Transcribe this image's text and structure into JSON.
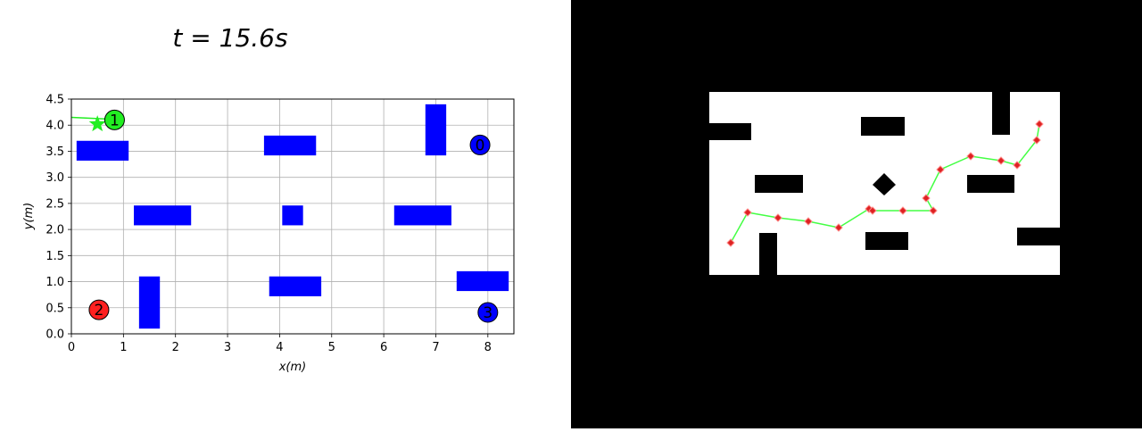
{
  "title": "t = 15.6s",
  "chart_data": {
    "type": "scatter",
    "title": "t = 15.6s",
    "xlabel": "x(m)",
    "ylabel": "y(m)",
    "xlim": [
      0,
      8.5
    ],
    "ylim": [
      0,
      4.5
    ],
    "xticks": [
      0,
      1,
      2,
      3,
      4,
      5,
      6,
      7,
      8
    ],
    "yticks": [
      0.0,
      0.5,
      1.0,
      1.5,
      2.0,
      2.5,
      3.0,
      3.5,
      4.0,
      4.5
    ],
    "grid": true,
    "obstacle_color": "#0000ff",
    "obstacles": [
      {
        "x0": 0.1,
        "x1": 1.1,
        "y0": 3.32,
        "y1": 3.7
      },
      {
        "x0": 3.7,
        "x1": 4.7,
        "y0": 3.42,
        "y1": 3.8
      },
      {
        "x0": 6.8,
        "x1": 7.2,
        "y0": 3.42,
        "y1": 4.4
      },
      {
        "x0": 1.2,
        "x1": 2.3,
        "y0": 2.08,
        "y1": 2.46
      },
      {
        "x0": 4.05,
        "x1": 4.45,
        "y0": 2.08,
        "y1": 2.46
      },
      {
        "x0": 6.2,
        "x1": 7.3,
        "y0": 2.08,
        "y1": 2.46
      },
      {
        "x0": 1.3,
        "x1": 1.7,
        "y0": 0.1,
        "y1": 1.1
      },
      {
        "x0": 3.8,
        "x1": 4.8,
        "y0": 0.72,
        "y1": 1.1
      },
      {
        "x0": 7.4,
        "x1": 8.4,
        "y0": 0.82,
        "y1": 1.2
      }
    ],
    "robots": [
      {
        "label": "0",
        "x": 7.85,
        "y": 3.62,
        "color": "#0000ff"
      },
      {
        "label": "1",
        "x": 0.83,
        "y": 4.1,
        "color": "#22ee22"
      },
      {
        "label": "2",
        "x": 0.53,
        "y": 0.46,
        "color": "#ff2020"
      },
      {
        "label": "3",
        "x": 8.0,
        "y": 0.41,
        "color": "#0000ff"
      }
    ],
    "goal": {
      "x": 0.5,
      "y": 4.02,
      "color": "#22ee22"
    },
    "trail": [
      {
        "x": 0.0,
        "y": 4.15
      },
      {
        "x": 0.65,
        "y": 4.12
      }
    ]
  },
  "map_view": {
    "background_color": "#000000",
    "free_space_color": "#ffffff",
    "path_color": "#44ff44",
    "waypoint_color": "#dd2222"
  }
}
